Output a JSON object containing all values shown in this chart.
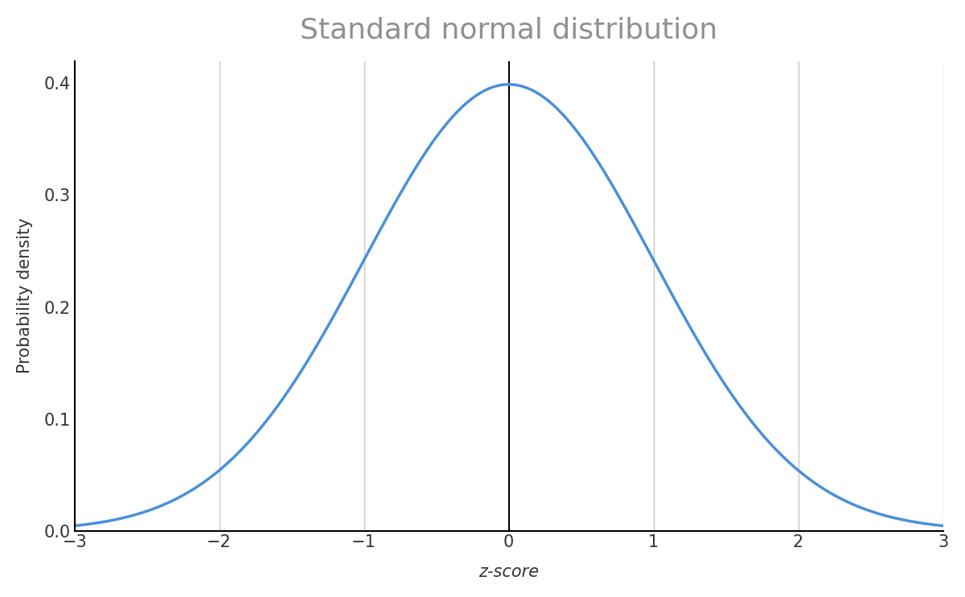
{
  "title": "Standard normal distribution",
  "xlabel": "z-score",
  "ylabel": "Probability density",
  "xlim": [
    -3,
    3
  ],
  "ylim": [
    0,
    0.42
  ],
  "xticks": [
    -3,
    -2,
    -1,
    0,
    1,
    2,
    3
  ],
  "yticks": [
    0.0,
    0.1,
    0.2,
    0.3,
    0.4
  ],
  "curve_color": "#4a90d9",
  "curve_linewidth": 2.5,
  "vline_at_zero_color": "#000000",
  "vline_at_zero_linewidth": 1.5,
  "gray_vline_color": "#c8c8c8",
  "gray_vline_linewidth": 1.0,
  "gray_vline_positions": [
    -2,
    -1,
    1,
    2,
    3
  ],
  "title_fontsize": 26,
  "title_color": "#909090",
  "label_fontsize": 15,
  "tick_fontsize": 15,
  "xlabel_style": "italic",
  "background_color": "#ffffff",
  "spine_color": "#000000",
  "tick_color": "#333333",
  "figsize": [
    12.0,
    7.42
  ],
  "dpi": 100
}
